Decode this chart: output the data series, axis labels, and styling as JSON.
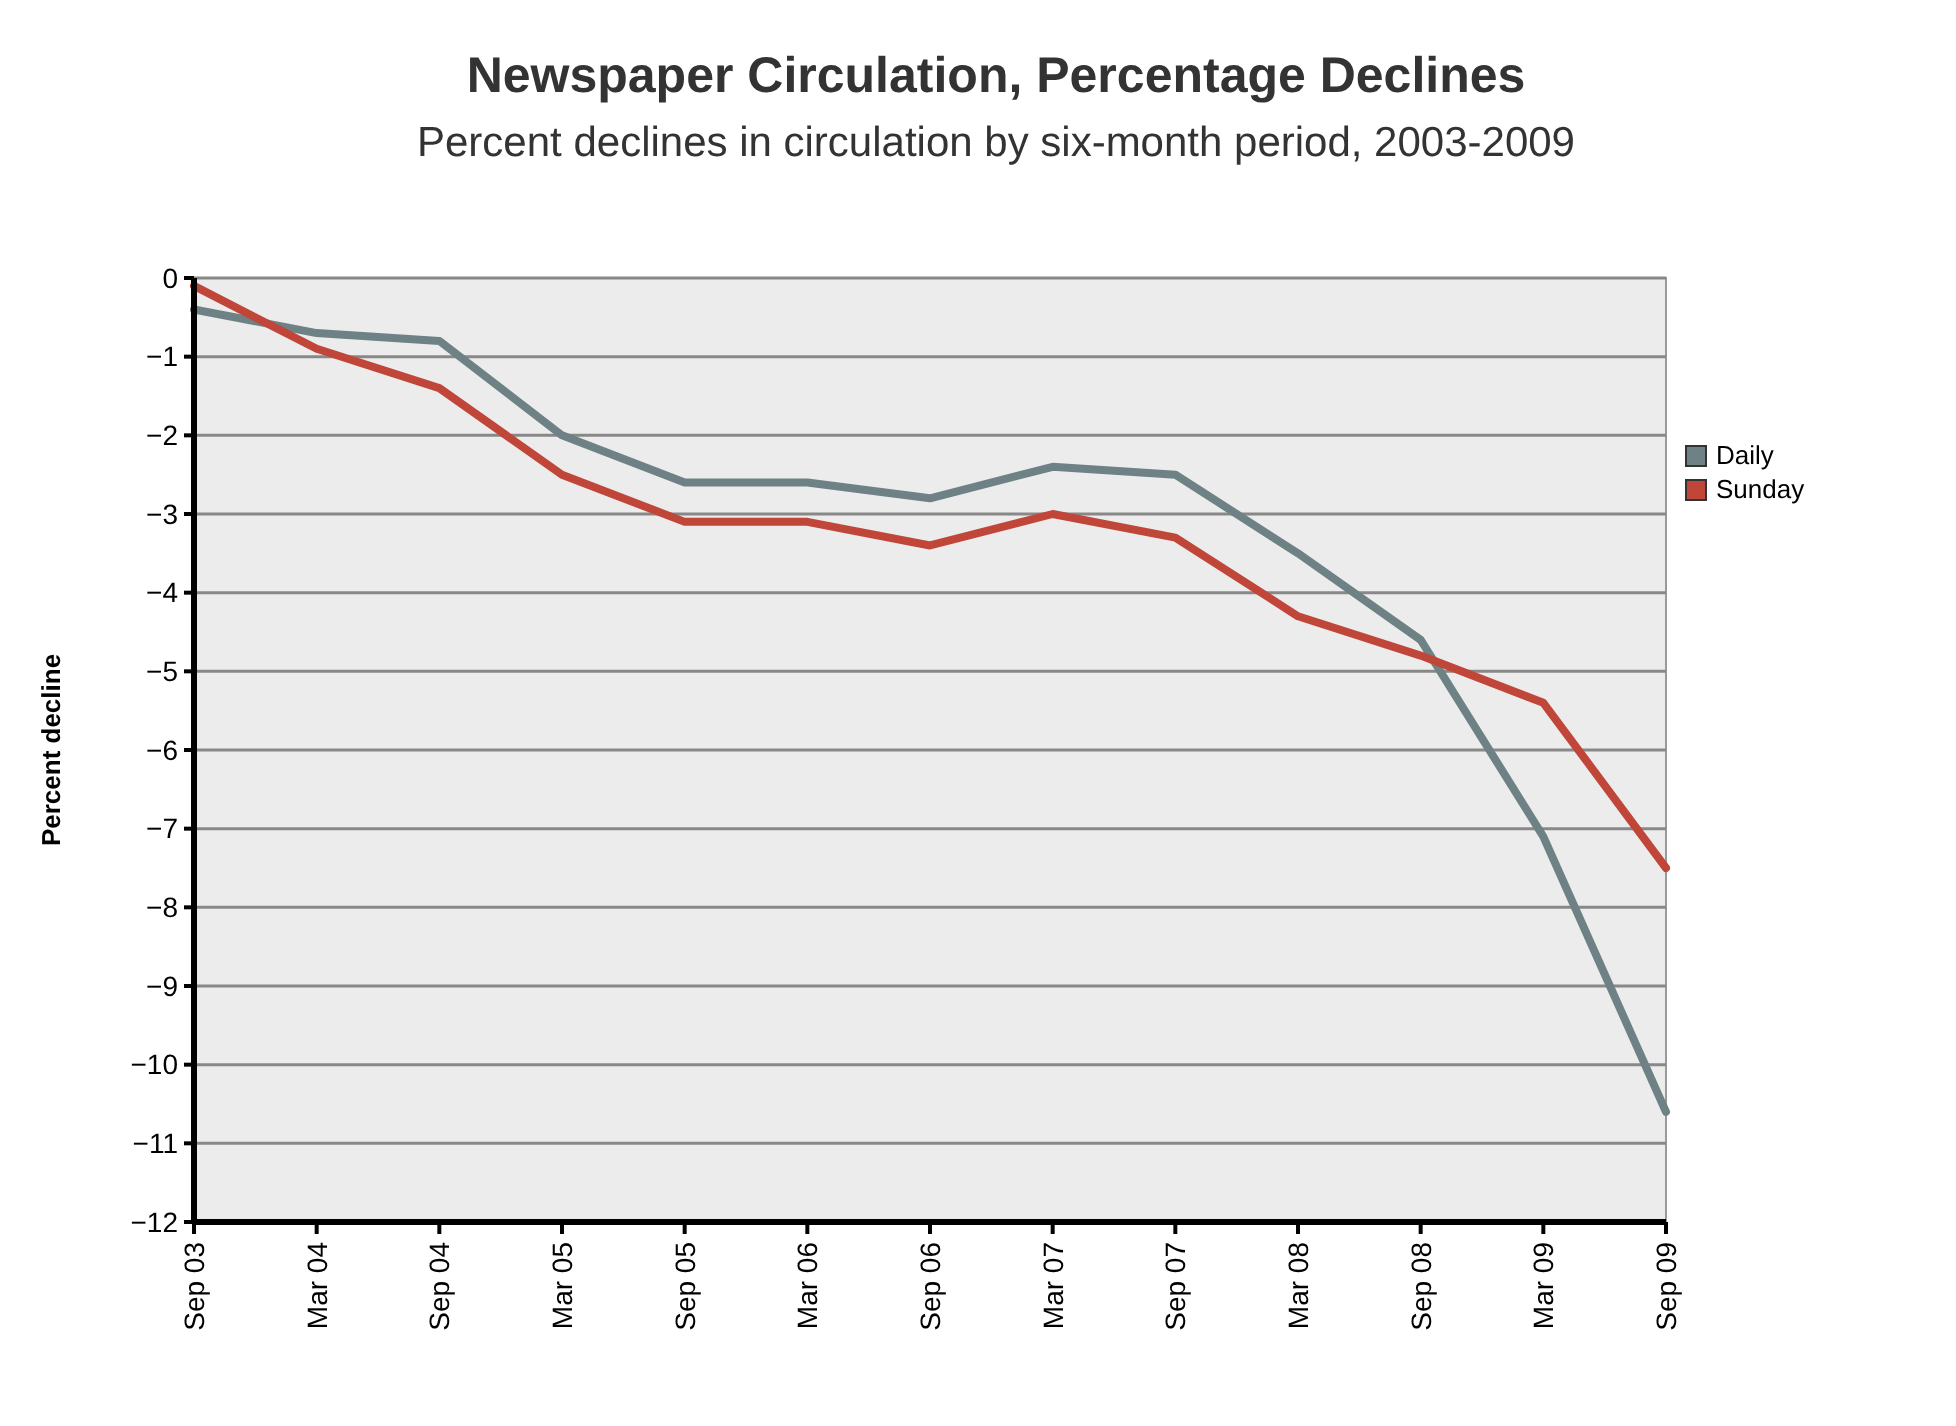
{
  "chart_data": {
    "type": "line",
    "title": "Newspaper Circulation, Percentage Declines",
    "subtitle": "Percent declines in circulation by six-month period, 2003-2009",
    "ylabel": "Percent decline",
    "categories": [
      "Sep 03",
      "Mar 04",
      "Sep 04",
      "Mar 05",
      "Sep 05",
      "Mar 06",
      "Sep 06",
      "Mar 07",
      "Sep 07",
      "Mar 08",
      "Sep 08",
      "Mar 09",
      "Sep 09"
    ],
    "series": [
      {
        "name": "Daily",
        "color": "#6e8285",
        "values": [
          -0.4,
          -0.7,
          -0.8,
          -2.0,
          -2.6,
          -2.6,
          -2.8,
          -2.4,
          -2.5,
          -3.5,
          -4.6,
          -7.1,
          -10.6
        ]
      },
      {
        "name": "Sunday",
        "color": "#c0463a",
        "values": [
          -0.1,
          -0.9,
          -1.4,
          -2.5,
          -3.1,
          -3.1,
          -3.4,
          -3.0,
          -3.3,
          -4.3,
          -4.8,
          -5.4,
          -7.5
        ]
      }
    ],
    "ylim": [
      -12,
      0
    ],
    "yticks": [
      -12,
      -11,
      -10,
      -9,
      -8,
      -7,
      -6,
      -5,
      -4,
      -3,
      -2,
      -1,
      0
    ],
    "grid": "y",
    "legend": "right",
    "marker": "none",
    "line_style": "solid"
  }
}
